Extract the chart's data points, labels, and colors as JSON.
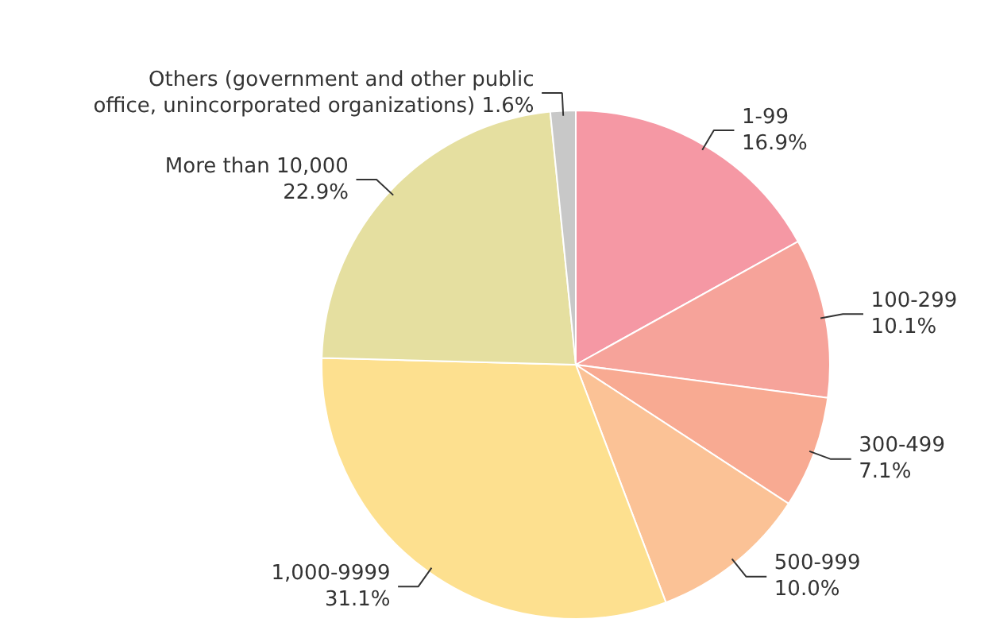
{
  "chart_data": {
    "type": "pie",
    "categories": [
      "1-99",
      "100-299",
      "300-499",
      "500-999",
      "1,000-9999",
      "More than 10,000",
      "Others (government and other public office, unincorporated organizations)"
    ],
    "values": [
      16.9,
      10.1,
      7.1,
      10.0,
      31.1,
      22.9,
      1.6
    ],
    "value_labels": [
      "16.9%",
      "10.1%",
      "7.1%",
      "10.0%",
      "31.1%",
      "22.9%",
      "1.6%"
    ],
    "colors": [
      "#f598a4",
      "#f6a39a",
      "#f8aa92",
      "#fbc296",
      "#fde08f",
      "#e5dfa0",
      "#c8c8c8"
    ]
  }
}
